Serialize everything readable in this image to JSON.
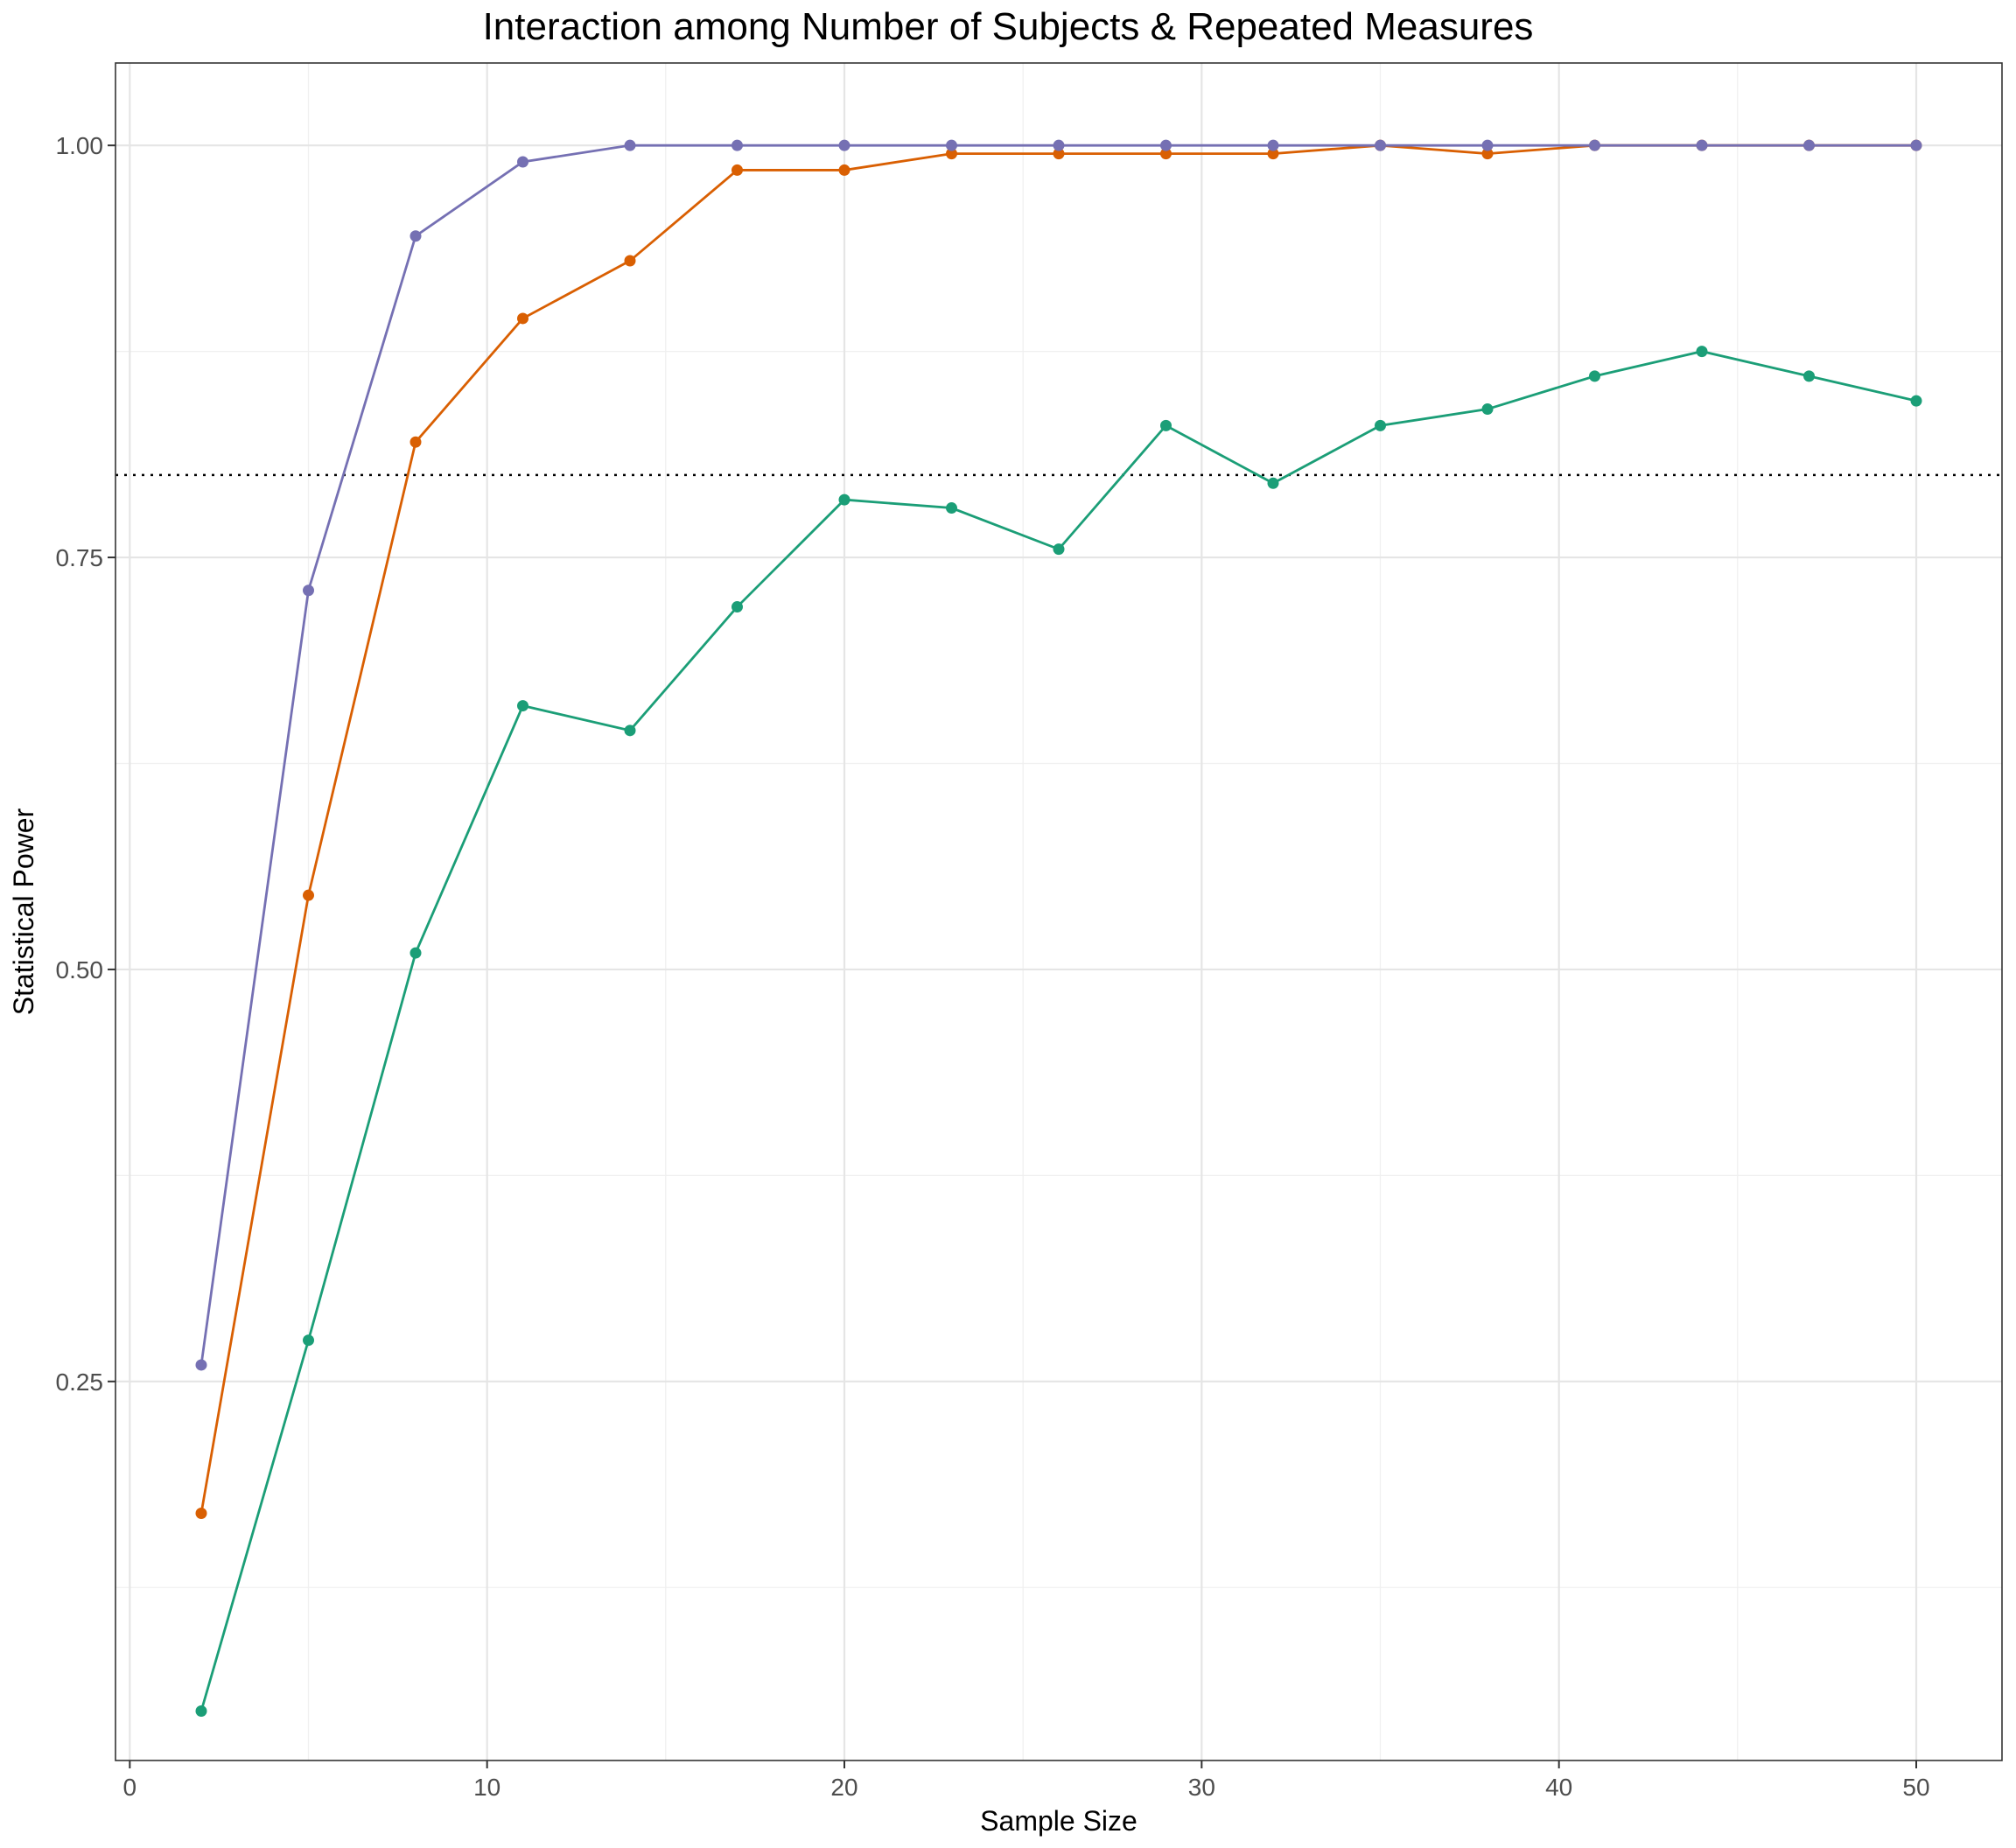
{
  "chart_data": {
    "type": "line",
    "title": "Interaction among Number of Subjects & Repeated Measures",
    "xlabel": "Sample Size",
    "ylabel": "Statistical Power",
    "xlim": [
      -0.4,
      52.4
    ],
    "ylim": [
      0.02,
      1.05
    ],
    "x_ticks": [
      0,
      10,
      20,
      30,
      40,
      50
    ],
    "x_tick_labels": [
      "0",
      "10",
      "20",
      "30",
      "40",
      "50"
    ],
    "x_minor_ticks": [
      5,
      15,
      25,
      35,
      45
    ],
    "y_ticks": [
      0.25,
      0.5,
      0.75,
      1.0
    ],
    "y_tick_labels": [
      "0.25",
      "0.50",
      "0.75",
      "1.00"
    ],
    "y_minor_ticks": [
      0.125,
      0.375,
      0.625,
      0.875
    ],
    "grid": true,
    "legend": "none",
    "reference_line": {
      "y": 0.8,
      "style": "dotted",
      "color": "#000000"
    },
    "x": [
      2,
      5,
      8,
      11,
      14,
      17,
      20,
      23,
      26,
      29,
      32,
      35,
      38,
      41,
      44,
      47,
      50
    ],
    "series": [
      {
        "color": "#1B9E77",
        "values": [
          0.05,
          0.275,
          0.51,
          0.66,
          0.645,
          0.72,
          0.785,
          0.78,
          0.755,
          0.83,
          0.795,
          0.83,
          0.84,
          0.86,
          0.875,
          0.86,
          0.845
        ]
      },
      {
        "color": "#D95F02",
        "values": [
          0.17,
          0.545,
          0.82,
          0.895,
          0.93,
          0.985,
          0.985,
          0.995,
          0.995,
          0.995,
          0.995,
          1.0,
          0.995,
          1.0,
          1.0,
          1.0,
          1.0
        ]
      },
      {
        "color": "#7570B3",
        "values": [
          0.26,
          0.73,
          0.945,
          0.99,
          1.0,
          1.0,
          1.0,
          1.0,
          1.0,
          1.0,
          1.0,
          1.0,
          1.0,
          1.0,
          1.0,
          1.0,
          1.0
        ]
      }
    ]
  }
}
